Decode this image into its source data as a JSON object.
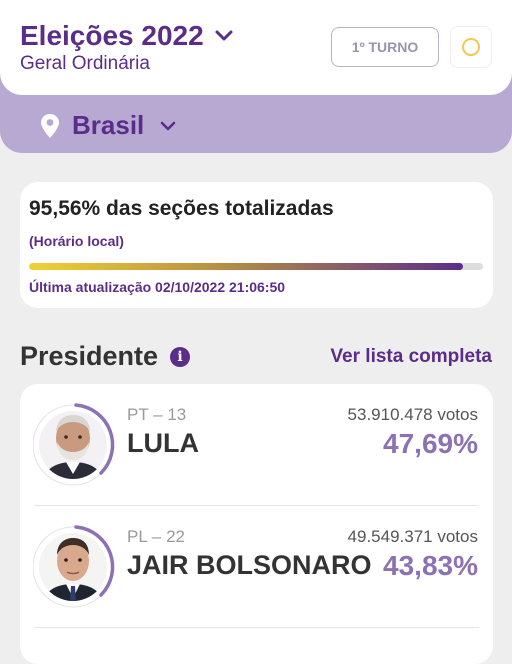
{
  "header": {
    "title": "Eleições 2022",
    "subtitle": "Geral Ordinária",
    "turno_label": "1º TURNO"
  },
  "location": {
    "name": "Brasil"
  },
  "status": {
    "title": "95,56% das seções totalizadas",
    "note": "(Horário local)",
    "progress_fraction": 0.9556,
    "update": "Última atualização 02/10/2022 21:06:50"
  },
  "section": {
    "title": "Presidente",
    "info_glyph": "i",
    "see_all": "Ver lista completa"
  },
  "candidates": [
    {
      "party": "PT – 13",
      "name": "LULA",
      "votes": "53.910.478 votos",
      "percent": "47,69%",
      "percent_value": 47.69
    },
    {
      "party": "PL – 22",
      "name": "JAIR BOLSONARO",
      "votes": "49.549.371 votos",
      "percent": "43,83%",
      "percent_value": 43.83
    }
  ],
  "colors": {
    "brand_purple": "#5b2d8a",
    "light_purple": "#b7a9d2",
    "percent_purple": "#8c72b4",
    "accent_yellow": "#f2c94c"
  },
  "icons": {
    "title_dropdown": "chevron-down-icon",
    "location": "map-pin-icon",
    "location_dropdown": "chevron-down-icon",
    "theme": "circle-theme-icon",
    "info": "info-icon"
  }
}
